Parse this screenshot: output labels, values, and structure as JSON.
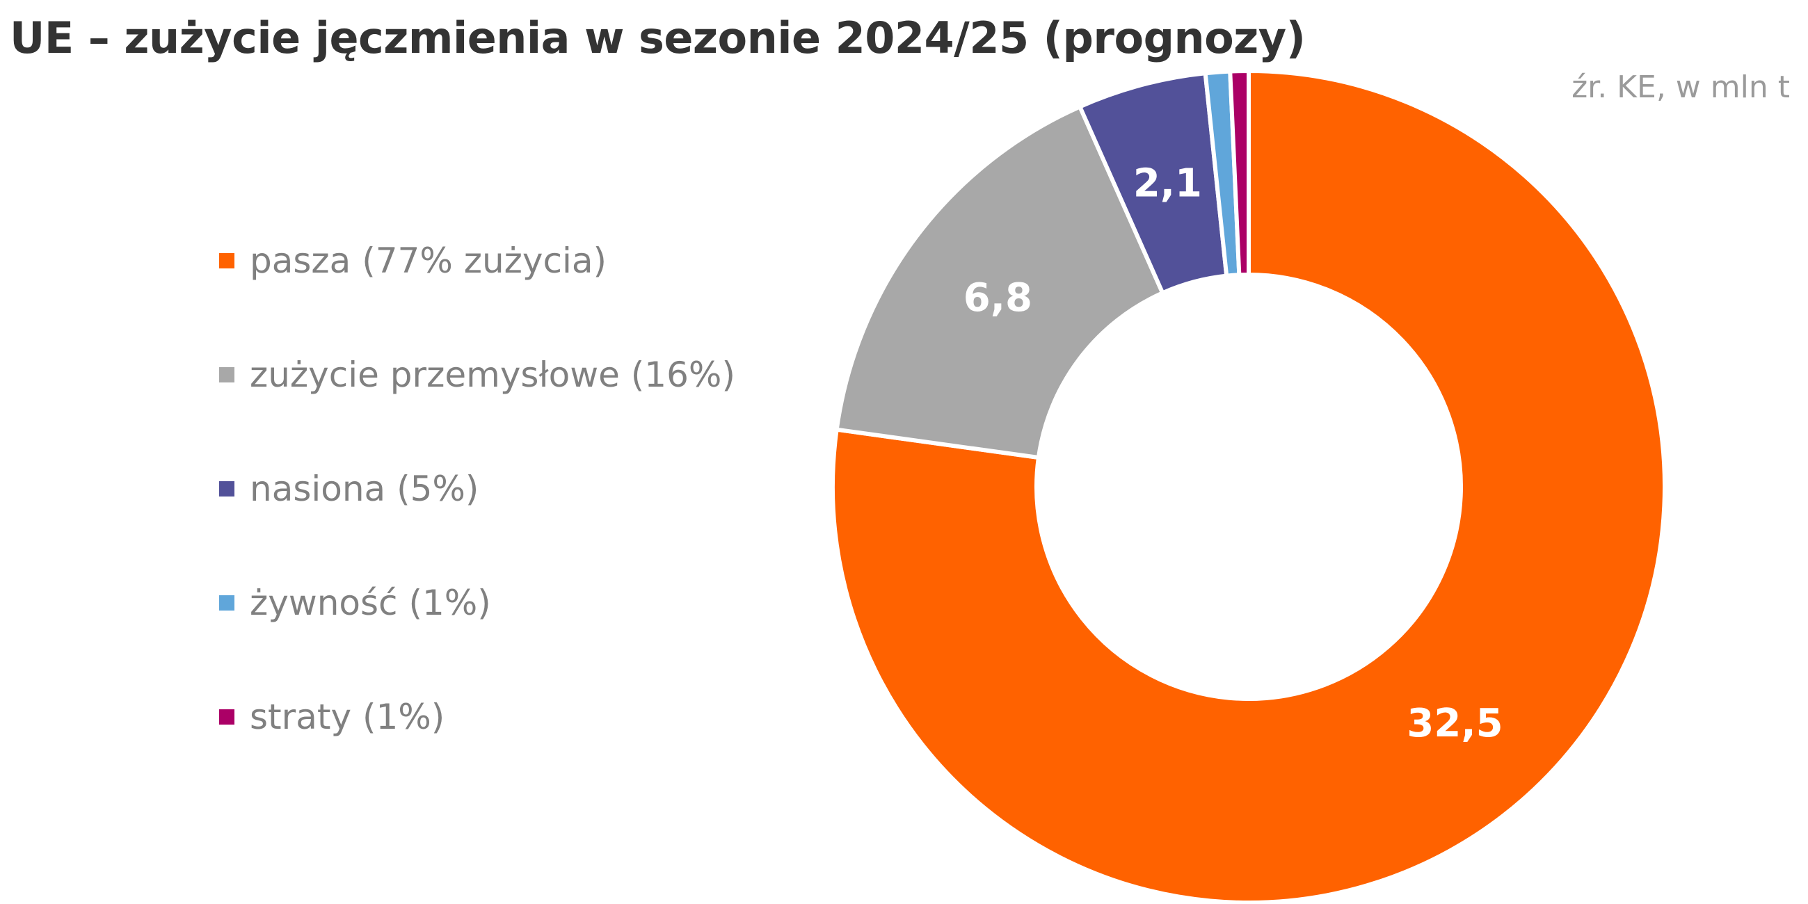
{
  "title": "UE – zużycie jęczmienia w sezonie 2024/25 (prognozy)",
  "source": "źr. KE, w mln t",
  "chart_data": {
    "type": "pie",
    "donut": true,
    "title": "UE – zużycie jęczmienia w sezonie 2024/25 (prognozy)",
    "legend_position": "left",
    "slices": [
      {
        "name": "pasza (77% zużycia)",
        "value": 32.5,
        "label": "32,5",
        "color": "#FF6200"
      },
      {
        "name": "zużycie przemysłowe (16%)",
        "value": 6.8,
        "label": "6,8",
        "color": "#A8A8A8"
      },
      {
        "name": "nasiona (5%)",
        "value": 2.1,
        "label": "2,1",
        "color": "#525199"
      },
      {
        "name": "żywność (1%)",
        "value": 0.4,
        "label": "",
        "color": "#60A6DA"
      },
      {
        "name": "straty (1%)",
        "value": 0.3,
        "label": "",
        "color": "#AB0066"
      }
    ]
  }
}
